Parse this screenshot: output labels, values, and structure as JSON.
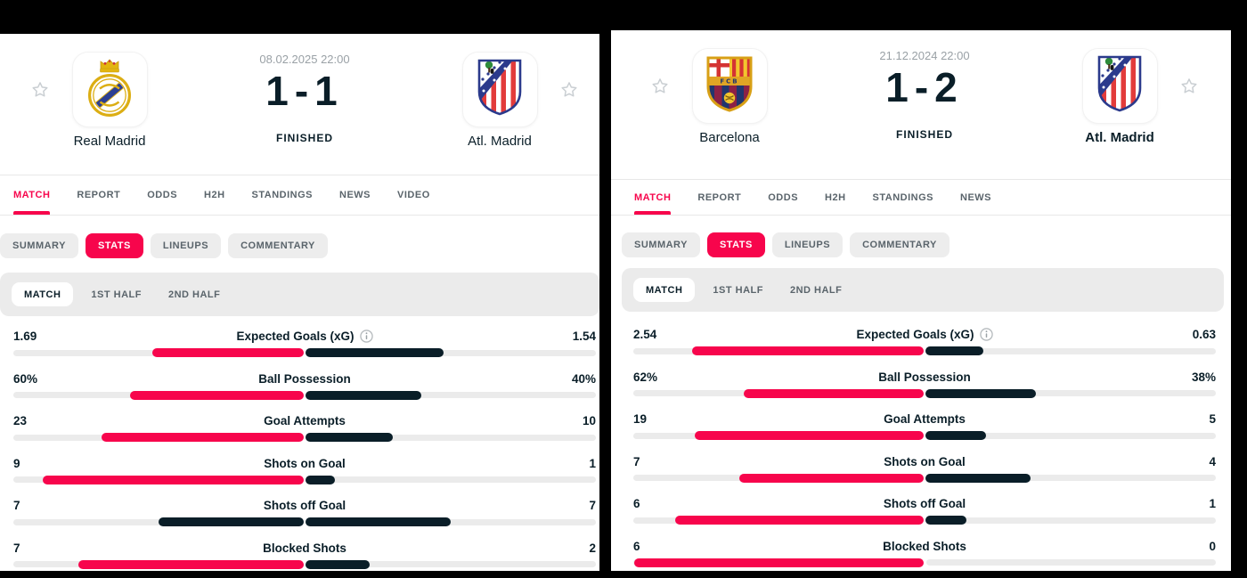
{
  "colors": {
    "accent": "#f7054c",
    "dark_navy": "#0a1e28",
    "track_gray": "#ebebeb",
    "pill_gray": "#ededed",
    "muted_text": "#5a646b",
    "date_text": "#9aa1a6"
  },
  "panels": [
    {
      "header": {
        "datetime": "08.02.2025 22:00",
        "score": "1-1",
        "status": "FINISHED",
        "home_team": "Real Madrid",
        "away_team": "Atl. Madrid",
        "home_logo": "real-madrid",
        "away_logo": "atletico-madrid",
        "winner": null
      },
      "tabs": [
        "MATCH",
        "REPORT",
        "ODDS",
        "H2H",
        "STANDINGS",
        "NEWS",
        "VIDEO"
      ],
      "active_tab": "MATCH",
      "subtabs": [
        "SUMMARY",
        "STATS",
        "LINEUPS",
        "COMMENTARY"
      ],
      "active_subtab": "STATS",
      "period_tabs": [
        "MATCH",
        "1ST HALF",
        "2ND HALF"
      ],
      "active_period": "MATCH",
      "stats": [
        {
          "label": "Expected Goals (xG)",
          "info": true,
          "home": "1.69",
          "away": "1.54"
        },
        {
          "label": "Ball Possession",
          "info": false,
          "home": "60%",
          "away": "40%"
        },
        {
          "label": "Goal Attempts",
          "info": false,
          "home": "23",
          "away": "10"
        },
        {
          "label": "Shots on Goal",
          "info": false,
          "home": "9",
          "away": "1"
        },
        {
          "label": "Shots off Goal",
          "info": false,
          "home": "7",
          "away": "7"
        },
        {
          "label": "Blocked Shots",
          "info": false,
          "home": "7",
          "away": "2"
        }
      ]
    },
    {
      "header": {
        "datetime": "21.12.2024 22:00",
        "score": "1-2",
        "status": "FINISHED",
        "home_team": "Barcelona",
        "away_team": "Atl. Madrid",
        "home_logo": "barcelona",
        "away_logo": "atletico-madrid",
        "winner": "away"
      },
      "tabs": [
        "MATCH",
        "REPORT",
        "ODDS",
        "H2H",
        "STANDINGS",
        "NEWS"
      ],
      "active_tab": "MATCH",
      "subtabs": [
        "SUMMARY",
        "STATS",
        "LINEUPS",
        "COMMENTARY"
      ],
      "active_subtab": "STATS",
      "period_tabs": [
        "MATCH",
        "1ST HALF",
        "2ND HALF"
      ],
      "active_period": "MATCH",
      "stats": [
        {
          "label": "Expected Goals (xG)",
          "info": true,
          "home": "2.54",
          "away": "0.63"
        },
        {
          "label": "Ball Possession",
          "info": false,
          "home": "62%",
          "away": "38%"
        },
        {
          "label": "Goal Attempts",
          "info": false,
          "home": "19",
          "away": "5"
        },
        {
          "label": "Shots on Goal",
          "info": false,
          "home": "7",
          "away": "4"
        },
        {
          "label": "Shots off Goal",
          "info": false,
          "home": "6",
          "away": "1"
        },
        {
          "label": "Blocked Shots",
          "info": false,
          "home": "6",
          "away": "0"
        }
      ]
    }
  ]
}
